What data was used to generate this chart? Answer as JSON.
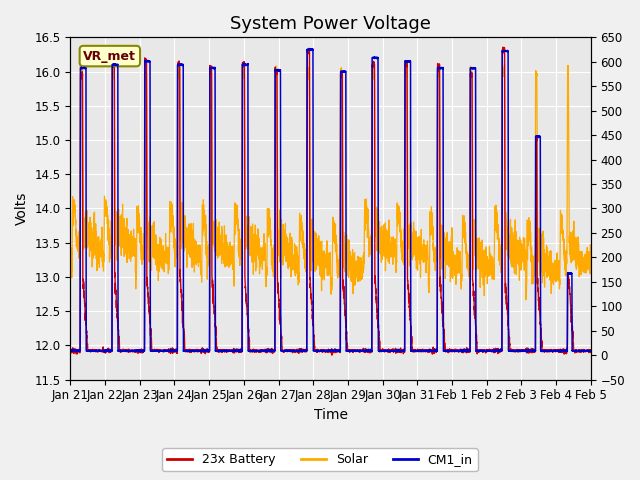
{
  "title": "System Power Voltage",
  "xlabel": "Time",
  "ylabel": "Volts",
  "ylim_left": [
    11.5,
    16.5
  ],
  "ylim_right": [
    -50,
    650
  ],
  "yticks_left": [
    11.5,
    12.0,
    12.5,
    13.0,
    13.5,
    14.0,
    14.5,
    15.0,
    15.5,
    16.0,
    16.5
  ],
  "yticks_right": [
    -50,
    0,
    50,
    100,
    150,
    200,
    250,
    300,
    350,
    400,
    450,
    500,
    550,
    600,
    650
  ],
  "xtick_labels": [
    "Jan 21",
    "Jan 22",
    "Jan 23",
    "Jan 24",
    "Jan 25",
    "Jan 26",
    "Jan 27",
    "Jan 28",
    "Jan 29",
    "Jan 30",
    "Jan 31",
    "Feb 1",
    "Feb 2",
    "Feb 3",
    "Feb 4",
    "Feb 5"
  ],
  "battery_color": "#cc0000",
  "solar_color": "#ffaa00",
  "cm1_color": "#0000cc",
  "legend_labels": [
    "23x Battery",
    "Solar",
    "CM1_in"
  ],
  "annotation_text": "VR_met",
  "plot_bg_color": "#e8e8e8",
  "fig_bg_color": "#f0f0f0",
  "grid_color": "#ffffff",
  "title_fontsize": 13,
  "axis_label_fontsize": 10,
  "tick_fontsize": 8.5,
  "legend_fontsize": 9,
  "n_days": 16,
  "night_v": 11.92,
  "charge_peak_v": 16.1,
  "solar_day_v": 13.75,
  "solar_peak_v": 16.0
}
